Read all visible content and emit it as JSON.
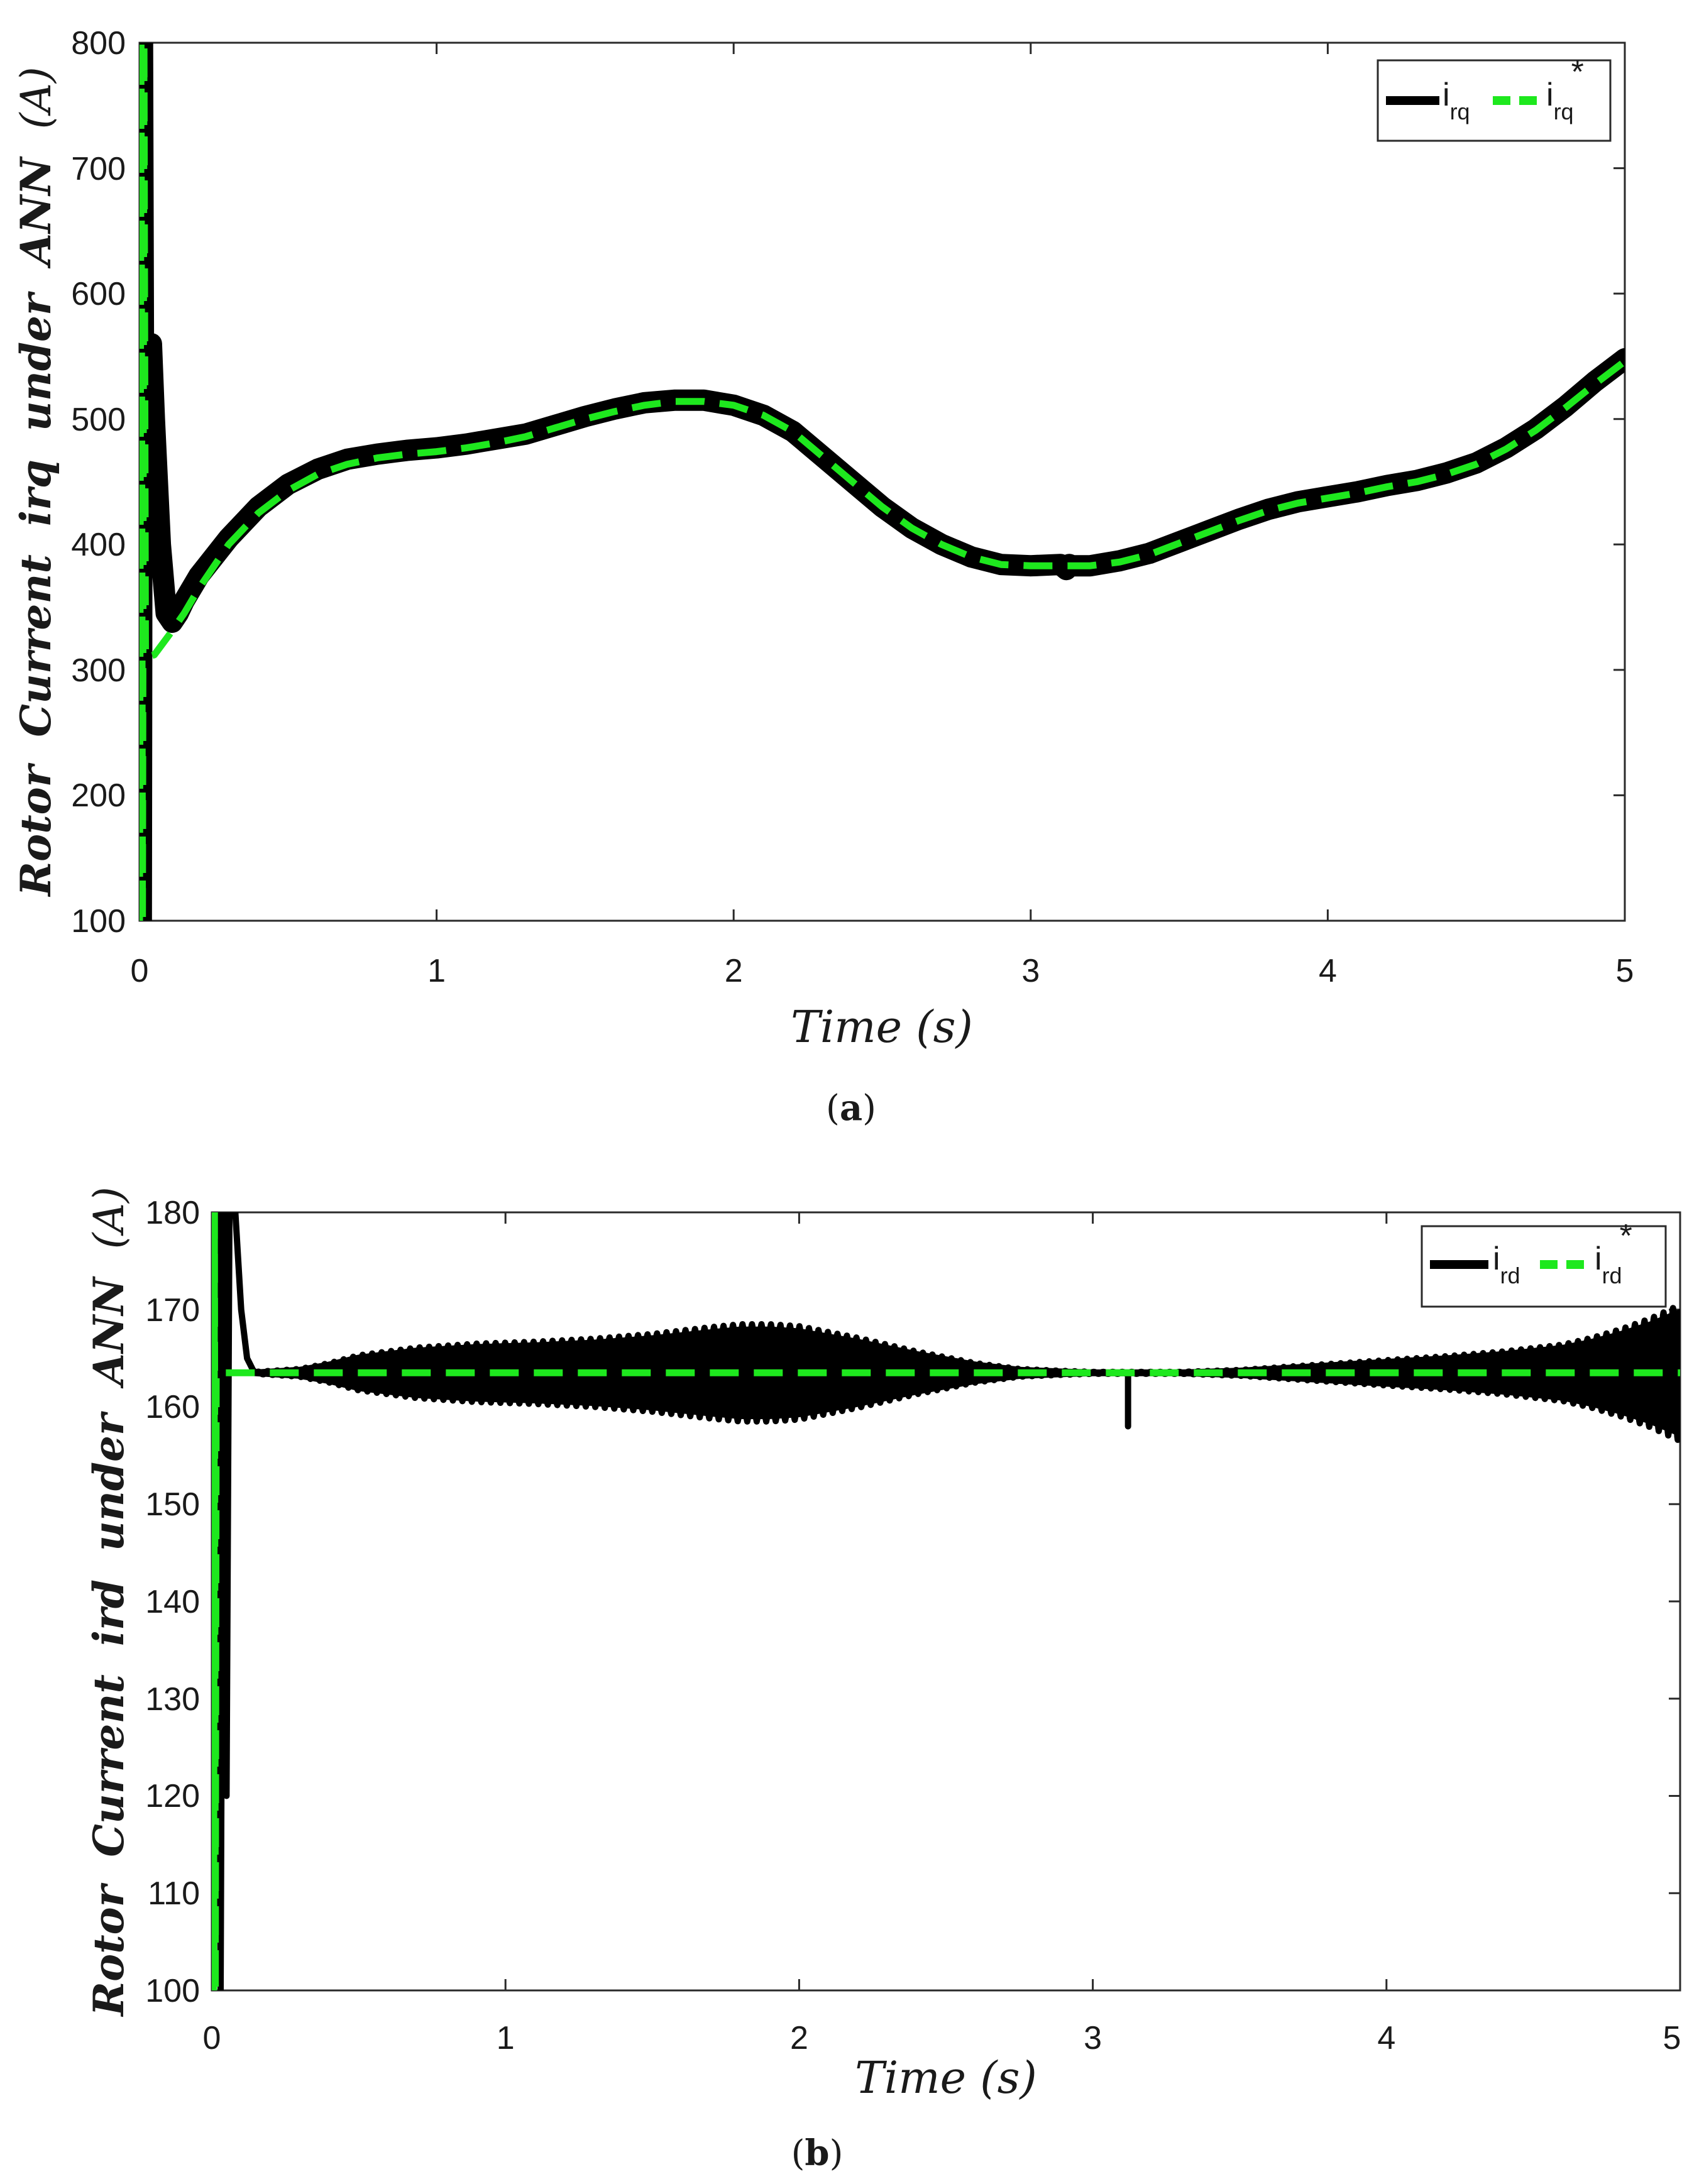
{
  "chart_data": [
    {
      "type": "line",
      "panel_label": "a",
      "ylabel": "Rotor Current irq under ANN (A)",
      "ylabel_parts": [
        "Rotor",
        "Current",
        "irq",
        "under",
        "ANN",
        "(A)"
      ],
      "xlabel": "Time (s)",
      "xlim": [
        0,
        5
      ],
      "ylim": [
        100,
        800
      ],
      "x_ticks": [
        "0",
        "1",
        "2",
        "3",
        "4",
        "5"
      ],
      "y_ticks": [
        "100",
        "200",
        "300",
        "400",
        "500",
        "600",
        "700",
        "800"
      ],
      "legend_position": "top-right",
      "series": [
        {
          "name": "i_rq",
          "legend_main": "i",
          "legend_sub": "rq",
          "legend_sup": "",
          "color": "#000000",
          "style": "solid",
          "x": [
            0,
            0.003,
            0.006,
            0.01,
            0.015,
            0.02,
            0.03,
            0.04,
            0.05,
            0.07,
            0.09,
            0.11,
            0.13,
            0.15,
            0.2,
            0.3,
            0.4,
            0.5,
            0.6,
            0.7,
            0.8,
            0.9,
            1.0,
            1.1,
            1.2,
            1.3,
            1.4,
            1.5,
            1.6,
            1.7,
            1.8,
            1.9,
            2.0,
            2.1,
            2.2,
            2.3,
            2.4,
            2.5,
            2.6,
            2.7,
            2.8,
            2.9,
            3.0,
            3.1,
            3.12,
            3.13,
            3.14,
            3.2,
            3.3,
            3.4,
            3.5,
            3.6,
            3.7,
            3.8,
            3.9,
            4.0,
            4.1,
            4.2,
            4.3,
            4.4,
            4.5,
            4.6,
            4.7,
            4.8,
            4.9,
            5.0
          ],
          "y": [
            100,
            800,
            100,
            800,
            400,
            430,
            420,
            560,
            500,
            400,
            345,
            338,
            345,
            355,
            375,
            405,
            430,
            448,
            460,
            468,
            472,
            475,
            477,
            480,
            484,
            488,
            495,
            502,
            508,
            513,
            515,
            515,
            511,
            503,
            490,
            470,
            450,
            430,
            413,
            400,
            390,
            384,
            383,
            384,
            380,
            384,
            383,
            383,
            387,
            393,
            402,
            411,
            420,
            428,
            434,
            438,
            442,
            447,
            451,
            457,
            465,
            477,
            492,
            510,
            530,
            548
          ]
        },
        {
          "name": "i_rq*",
          "legend_main": "i",
          "legend_sub": "rq",
          "legend_sup": "*",
          "color": "#1ee81e",
          "style": "dashed",
          "x": [
            0,
            0.005,
            0.01,
            0.015,
            0.02,
            0.05,
            0.1,
            0.15,
            0.2,
            0.3,
            0.4,
            0.5,
            0.6,
            0.7,
            0.8,
            0.9,
            1.0,
            1.1,
            1.2,
            1.3,
            1.4,
            1.5,
            1.6,
            1.7,
            1.8,
            1.9,
            2.0,
            2.1,
            2.2,
            2.3,
            2.4,
            2.5,
            2.6,
            2.7,
            2.8,
            2.9,
            3.0,
            3.1,
            3.2,
            3.3,
            3.4,
            3.5,
            3.6,
            3.7,
            3.8,
            3.9,
            4.0,
            4.1,
            4.2,
            4.3,
            4.4,
            4.5,
            4.6,
            4.7,
            4.8,
            4.9,
            5.0
          ],
          "y": [
            100,
            800,
            100,
            800,
            310,
            312,
            328,
            345,
            365,
            400,
            425,
            443,
            456,
            464,
            469,
            472,
            474,
            477,
            481,
            486,
            493,
            500,
            506,
            511,
            514,
            514,
            511,
            503,
            490,
            470,
            450,
            430,
            413,
            400,
            390,
            384,
            383,
            383,
            383,
            386,
            392,
            401,
            410,
            419,
            427,
            433,
            437,
            441,
            446,
            450,
            456,
            464,
            476,
            491,
            509,
            528,
            546
          ]
        }
      ]
    },
    {
      "type": "line",
      "panel_label": "b",
      "ylabel": "Rotor Current ird under ANN (A)",
      "ylabel_parts": [
        "Rotor",
        "Current",
        "ird",
        "under",
        "ANN",
        "(A)"
      ],
      "xlabel": "Time (s)",
      "xlim": [
        0,
        5
      ],
      "ylim": [
        100,
        180
      ],
      "x_ticks": [
        "0",
        "1",
        "2",
        "3",
        "4",
        "5"
      ],
      "y_ticks": [
        "100",
        "110",
        "120",
        "130",
        "140",
        "150",
        "160",
        "170",
        "180"
      ],
      "legend_position": "top-right",
      "series": [
        {
          "name": "i_rd",
          "legend_main": "i",
          "legend_sub": "rd",
          "legend_sup": "",
          "color": "#000000",
          "style": "solid",
          "base": 163.5,
          "envelope_x": [
            0.15,
            0.3,
            0.4,
            0.5,
            0.7,
            0.9,
            1.1,
            1.3,
            1.5,
            1.7,
            1.8,
            1.9,
            2.0,
            2.2,
            2.4,
            2.6,
            2.75,
            2.9,
            3.0,
            3.1,
            3.2,
            3.3,
            3.4,
            3.5,
            3.6,
            3.8,
            4.0,
            4.2,
            4.4,
            4.6,
            4.7,
            4.8,
            4.9,
            5.0
          ],
          "envelope": [
            0.1,
            0.4,
            1.0,
            1.8,
            2.6,
            3.0,
            3.2,
            3.5,
            4.0,
            4.7,
            5.0,
            5.0,
            4.8,
            3.6,
            2.2,
            1.0,
            0.4,
            0.2,
            0.1,
            0.1,
            0.1,
            0.1,
            0.2,
            0.3,
            0.5,
            0.9,
            1.3,
            1.7,
            2.2,
            2.9,
            3.6,
            4.5,
            5.6,
            7.0
          ],
          "startup_x": [
            0,
            0.02,
            0.03,
            0.04,
            0.05,
            0.06,
            0.08,
            0.1,
            0.12,
            0.14,
            0.15
          ],
          "startup_y": [
            100,
            180,
            100,
            180,
            120,
            180,
            180,
            170,
            165,
            163.8,
            163.5
          ],
          "dip_x": 3.12,
          "dip_y": 158
        },
        {
          "name": "i_rd*",
          "legend_main": "i",
          "legend_sub": "rd",
          "legend_sup": "*",
          "color": "#1ee81e",
          "style": "dashed",
          "x": [
            0,
            0.003,
            0.006,
            0.009,
            0.012,
            0.015,
            0.02,
            0.03,
            0.05,
            0.1,
            1,
            2,
            3,
            4,
            5
          ],
          "y": [
            100,
            180,
            100,
            180,
            100,
            163.5,
            163.5,
            163.5,
            163.5,
            163.5,
            163.5,
            163.5,
            163.5,
            163.5,
            163.5
          ]
        }
      ]
    }
  ]
}
